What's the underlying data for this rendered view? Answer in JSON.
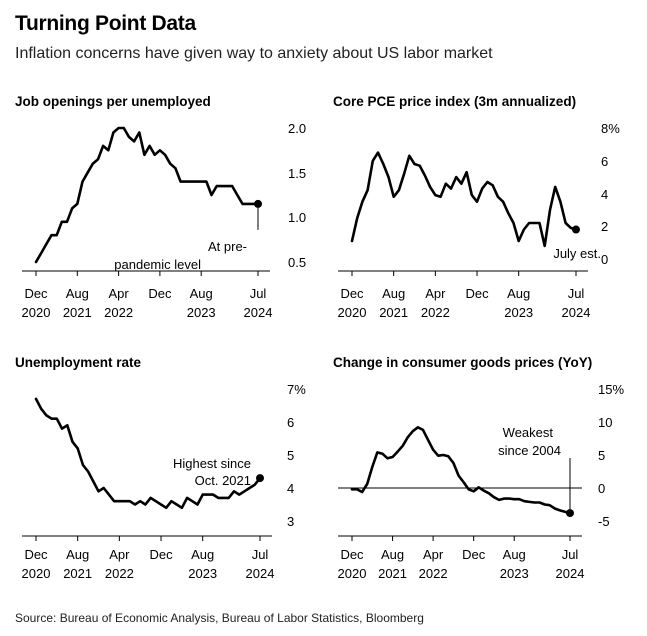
{
  "header": {
    "title": "Turning Point Data",
    "subtitle": "Inflation concerns have given way to anxiety about US labor market",
    "source": "Source: Bureau of Economic Analysis, Bureau of Labor Statistics, Bloomberg"
  },
  "colors": {
    "line": "#000000",
    "background": "#ffffff",
    "zero_line": "#000000"
  },
  "chart_data": [
    {
      "type": "line",
      "title": "Job openings per unemployed",
      "x_ticks": [
        [
          "Dec",
          "2020"
        ],
        [
          "Aug",
          "2021"
        ],
        [
          "Apr",
          "2022"
        ],
        [
          "Dec",
          ""
        ],
        [
          "Aug",
          "2023"
        ],
        [
          "Jul",
          "2024"
        ]
      ],
      "y_ticks": [
        "2.0",
        "1.5",
        "1.0",
        "0.5"
      ],
      "ylim": [
        0.45,
        2.1
      ],
      "xlim": [
        "2020-12",
        "2024-07"
      ],
      "annotation": [
        "At pre-",
        "pandemic level"
      ],
      "series": [
        {
          "x": [
            "2020-12",
            "2021-01",
            "2021-02",
            "2021-03",
            "2021-04",
            "2021-05",
            "2021-06",
            "2021-07",
            "2021-08",
            "2021-09",
            "2021-10",
            "2021-11",
            "2021-12",
            "2022-01",
            "2022-02",
            "2022-03",
            "2022-04",
            "2022-05",
            "2022-06",
            "2022-07",
            "2022-08",
            "2022-09",
            "2022-10",
            "2022-11",
            "2022-12",
            "2023-01",
            "2023-02",
            "2023-03",
            "2023-04",
            "2023-05",
            "2023-06",
            "2023-07",
            "2023-08",
            "2023-09",
            "2023-10",
            "2023-11",
            "2023-12",
            "2024-01",
            "2024-02",
            "2024-03",
            "2024-04",
            "2024-05",
            "2024-06",
            "2024-07"
          ],
          "values": [
            0.5,
            0.6,
            0.7,
            0.8,
            0.8,
            0.95,
            0.95,
            1.1,
            1.15,
            1.4,
            1.5,
            1.6,
            1.65,
            1.8,
            1.75,
            1.95,
            2.0,
            2.0,
            1.9,
            1.85,
            1.95,
            1.7,
            1.8,
            1.7,
            1.75,
            1.7,
            1.6,
            1.55,
            1.4,
            1.4,
            1.4,
            1.4,
            1.4,
            1.4,
            1.25,
            1.35,
            1.35,
            1.35,
            1.35,
            1.25,
            1.15,
            1.15,
            1.15,
            1.15
          ]
        }
      ]
    },
    {
      "type": "line",
      "title": "Core PCE price index (3m annualized)",
      "x_ticks": [
        [
          "Dec",
          "2020"
        ],
        [
          "Aug",
          "2021"
        ],
        [
          "Apr",
          "2022"
        ],
        [
          "Dec",
          ""
        ],
        [
          "Aug",
          "2023"
        ],
        [
          "Jul",
          "2024"
        ]
      ],
      "y_ticks": [
        "8%",
        "6",
        "4",
        "2",
        "0"
      ],
      "ylim": [
        -0.2,
        8.2
      ],
      "xlim": [
        "2020-12",
        "2024-07"
      ],
      "annotation": [
        "July est."
      ],
      "series": [
        {
          "x": [
            "2020-12",
            "2021-01",
            "2021-02",
            "2021-03",
            "2021-04",
            "2021-05",
            "2021-06",
            "2021-07",
            "2021-08",
            "2021-09",
            "2021-10",
            "2021-11",
            "2021-12",
            "2022-01",
            "2022-02",
            "2022-03",
            "2022-04",
            "2022-05",
            "2022-06",
            "2022-07",
            "2022-08",
            "2022-09",
            "2022-10",
            "2022-11",
            "2022-12",
            "2023-01",
            "2023-02",
            "2023-03",
            "2023-04",
            "2023-05",
            "2023-06",
            "2023-07",
            "2023-08",
            "2023-09",
            "2023-10",
            "2023-11",
            "2023-12",
            "2024-01",
            "2024-02",
            "2024-03",
            "2024-04",
            "2024-05",
            "2024-06",
            "2024-07"
          ],
          "values": [
            1.1,
            2.5,
            3.5,
            4.2,
            6.0,
            6.5,
            5.8,
            5.0,
            3.8,
            4.2,
            5.2,
            6.3,
            5.8,
            5.7,
            5.1,
            4.4,
            3.9,
            3.8,
            4.6,
            4.3,
            5.0,
            4.6,
            5.3,
            3.9,
            3.5,
            4.3,
            4.7,
            4.5,
            3.8,
            3.5,
            2.8,
            2.2,
            1.1,
            1.8,
            2.2,
            2.2,
            2.2,
            0.8,
            3.0,
            4.4,
            3.5,
            2.2,
            1.9,
            1.8
          ]
        }
      ]
    },
    {
      "type": "line",
      "title": "Unemployment rate",
      "x_ticks": [
        [
          "Dec",
          "2020"
        ],
        [
          "Aug",
          "2021"
        ],
        [
          "Apr",
          "2022"
        ],
        [
          "Dec",
          ""
        ],
        [
          "Aug",
          "2023"
        ],
        [
          "Jul",
          "2024"
        ]
      ],
      "y_ticks": [
        "7%",
        "6",
        "5",
        "4",
        "3"
      ],
      "ylim": [
        2.7,
        7.2
      ],
      "xlim": [
        "2020-12",
        "2024-07"
      ],
      "annotation": [
        "Highest since",
        "Oct. 2021"
      ],
      "series": [
        {
          "x": [
            "2020-12",
            "2021-01",
            "2021-02",
            "2021-03",
            "2021-04",
            "2021-05",
            "2021-06",
            "2021-07",
            "2021-08",
            "2021-09",
            "2021-10",
            "2021-11",
            "2021-12",
            "2022-01",
            "2022-02",
            "2022-03",
            "2022-04",
            "2022-05",
            "2022-06",
            "2022-07",
            "2022-08",
            "2022-09",
            "2022-10",
            "2022-11",
            "2022-12",
            "2023-01",
            "2023-02",
            "2023-03",
            "2023-04",
            "2023-05",
            "2023-06",
            "2023-07",
            "2023-08",
            "2023-09",
            "2023-10",
            "2023-11",
            "2023-12",
            "2024-01",
            "2024-02",
            "2024-03",
            "2024-04",
            "2024-05",
            "2024-06",
            "2024-07"
          ],
          "values": [
            6.7,
            6.4,
            6.2,
            6.1,
            6.1,
            5.8,
            5.9,
            5.4,
            5.2,
            4.7,
            4.5,
            4.2,
            3.9,
            4.0,
            3.8,
            3.6,
            3.6,
            3.6,
            3.6,
            3.5,
            3.6,
            3.5,
            3.7,
            3.6,
            3.5,
            3.4,
            3.6,
            3.5,
            3.4,
            3.7,
            3.6,
            3.5,
            3.8,
            3.8,
            3.8,
            3.7,
            3.7,
            3.7,
            3.9,
            3.8,
            3.9,
            4.0,
            4.1,
            4.3
          ]
        }
      ]
    },
    {
      "type": "line",
      "title": "Change in consumer goods prices (YoY)",
      "x_ticks": [
        [
          "Dec",
          "2020"
        ],
        [
          "Aug",
          "2021"
        ],
        [
          "Apr",
          "2022"
        ],
        [
          "Dec",
          ""
        ],
        [
          "Aug",
          "2023"
        ],
        [
          "Jul",
          "2024"
        ]
      ],
      "y_ticks": [
        "15%",
        "10",
        "5",
        "0",
        "-5"
      ],
      "ylim": [
        -6,
        15.5
      ],
      "xlim": [
        "2020-12",
        "2024-07"
      ],
      "annotation": [
        "Weakest",
        "since 2004"
      ],
      "series": [
        {
          "x": [
            "2020-12",
            "2021-01",
            "2021-02",
            "2021-03",
            "2021-04",
            "2021-05",
            "2021-06",
            "2021-07",
            "2021-08",
            "2021-09",
            "2021-10",
            "2021-11",
            "2021-12",
            "2022-01",
            "2022-02",
            "2022-03",
            "2022-04",
            "2022-05",
            "2022-06",
            "2022-07",
            "2022-08",
            "2022-09",
            "2022-10",
            "2022-11",
            "2022-12",
            "2023-01",
            "2023-02",
            "2023-03",
            "2023-04",
            "2023-05",
            "2023-06",
            "2023-07",
            "2023-08",
            "2023-09",
            "2023-10",
            "2023-11",
            "2023-12",
            "2024-01",
            "2024-02",
            "2024-03",
            "2024-04",
            "2024-05",
            "2024-06",
            "2024-07"
          ],
          "values": [
            -0.2,
            -0.2,
            -0.6,
            0.6,
            3.2,
            5.4,
            5.2,
            4.5,
            4.7,
            5.5,
            6.4,
            7.7,
            8.6,
            9.2,
            8.8,
            7.3,
            5.8,
            4.9,
            5.0,
            4.8,
            3.8,
            1.9,
            0.9,
            -0.2,
            -0.5,
            0.1,
            -0.4,
            -0.8,
            -1.4,
            -1.8,
            -1.6,
            -1.6,
            -1.7,
            -1.7,
            -2.0,
            -2.1,
            -2.2,
            -2.2,
            -2.5,
            -2.6,
            -3.1,
            -3.4,
            -3.6,
            -3.8
          ]
        }
      ]
    }
  ]
}
